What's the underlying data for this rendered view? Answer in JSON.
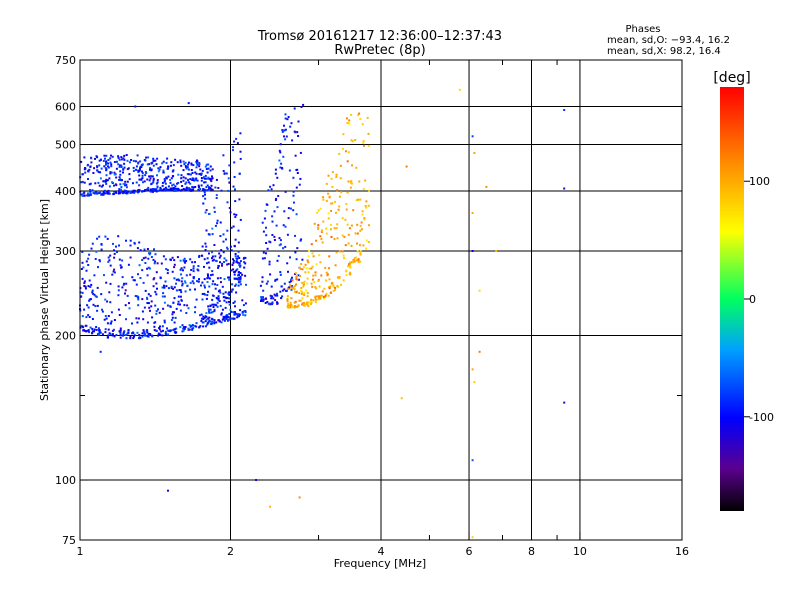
{
  "chart_data": {
    "type": "scatter",
    "title": "Tromsø 20161217 12:36:00–12:37:43",
    "subtitle": "RwPretec (8p)",
    "xlabel": "Frequency [MHz]",
    "ylabel": "Stationary phase Virtual Height [km]",
    "x_scale": "log",
    "y_scale": "log",
    "xlim": [
      1,
      16
    ],
    "ylim": [
      75,
      750
    ],
    "x_ticks": [
      1,
      2,
      4,
      6,
      8,
      10,
      16
    ],
    "x_tick_labels": [
      "1",
      "2",
      "4",
      "6",
      "8",
      "10",
      "16"
    ],
    "x_minor_ticks": [
      3,
      5,
      7,
      9
    ],
    "y_ticks": [
      75,
      100,
      200,
      300,
      400,
      500,
      600,
      750
    ],
    "y_tick_labels": [
      "75",
      "100",
      "200",
      "300",
      "400",
      "500",
      "600",
      "750"
    ],
    "y_minor_ticks": [
      150
    ],
    "grid": true,
    "colorbar": {
      "label": "[deg]",
      "range": [
        -180,
        180
      ],
      "ticks": [
        -100,
        0,
        100
      ],
      "tick_labels": [
        "-100",
        "0",
        "100"
      ]
    },
    "phase_box": {
      "title": "Phases",
      "line_o": "mean, sd,O: −93.4, 16.2",
      "line_x": "mean, sd,X:  98.2, 16.4"
    },
    "series": [
      {
        "name": "O",
        "phase_mean": -93.4,
        "phase_sd": 16.2,
        "traces": [
          {
            "f_range": [
              1.0,
              2.15
            ],
            "h_lower": [
              205,
              198,
              197,
              200,
              205,
              212,
              220
            ],
            "h_upper": [
              310,
              330,
              320,
              300,
              290,
              300,
              320
            ]
          },
          {
            "f_range": [
              1.0,
              1.85
            ],
            "h_lower": [
              390,
              395,
              400,
              400
            ],
            "h_upper": [
              470,
              480,
              470,
              460
            ]
          },
          {
            "f_range": [
              1.75,
              2.1
            ],
            "h_lower": [
              210,
              230,
              260
            ],
            "h_upper": [
              400,
              470,
              540
            ]
          },
          {
            "f_range": [
              2.3,
              2.8
            ],
            "h_lower": [
              235,
              230,
              245,
              265
            ],
            "h_upper": [
              330,
              470,
              620,
              640
            ]
          }
        ],
        "isolated_points": [
          [
            1.29,
            600
          ],
          [
            1.65,
            610
          ],
          [
            1.5,
            95
          ],
          [
            2.25,
            100
          ],
          [
            6.1,
            520
          ],
          [
            6.1,
            300
          ],
          [
            9.3,
            590
          ],
          [
            9.3,
            405
          ],
          [
            9.3,
            145
          ],
          [
            1.1,
            185
          ],
          [
            6.1,
            110
          ]
        ]
      },
      {
        "name": "X",
        "phase_mean": 98.2,
        "phase_sd": 16.4,
        "traces": [
          {
            "f_range": [
              2.6,
              3.8
            ],
            "h_lower": [
              228,
              230,
              240,
              265,
              300
            ],
            "h_upper": [
              250,
              300,
              440,
              600,
              580
            ]
          }
        ],
        "isolated_points": [
          [
            5.75,
            650
          ],
          [
            4.5,
            450
          ],
          [
            4.4,
            148
          ],
          [
            2.4,
            88
          ],
          [
            2.75,
            92
          ],
          [
            6.15,
            480
          ],
          [
            6.1,
            360
          ],
          [
            6.1,
            170
          ],
          [
            6.15,
            160
          ],
          [
            6.3,
            185
          ],
          [
            6.5,
            408
          ],
          [
            6.3,
            248
          ],
          [
            6.8,
            300
          ],
          [
            6.1,
            76
          ]
        ]
      }
    ]
  }
}
